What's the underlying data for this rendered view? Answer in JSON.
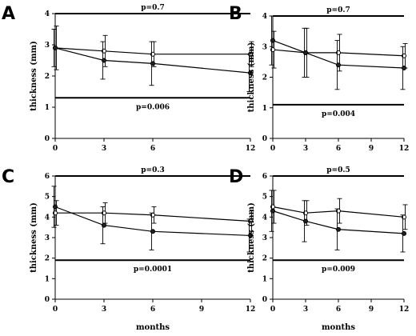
{
  "chart_data": [
    {
      "type": "line",
      "panel": "A",
      "x": [
        0,
        3,
        6,
        12
      ],
      "xticks": [
        "0",
        "3",
        "6",
        "12"
      ],
      "xlim": [
        0,
        12
      ],
      "ylim": [
        0,
        4
      ],
      "yticks": [
        "0",
        "1",
        "2",
        "3",
        "4"
      ],
      "xlabel": "",
      "ylabel": "thickness (mm)",
      "top_p": "p=0.7",
      "bottom_p": "p=0.006",
      "top_line_y": 4.0,
      "bottom_line_y": 1.3,
      "series": [
        {
          "marker": "open",
          "values": [
            2.9,
            2.8,
            2.7,
            2.7
          ],
          "err": [
            0.7,
            0.5,
            0.4,
            0.4
          ]
        },
        {
          "marker": "filled",
          "values": [
            2.9,
            2.5,
            2.4,
            2.1
          ],
          "err": [
            0.6,
            0.6,
            0.7,
            0.6
          ]
        }
      ]
    },
    {
      "type": "line",
      "panel": "B",
      "x": [
        0,
        3,
        6,
        12
      ],
      "xticks": [
        "0",
        "3",
        "6",
        "9",
        "12"
      ],
      "xlim": [
        0,
        12
      ],
      "ylim": [
        0,
        4
      ],
      "yticks": [
        "0",
        "1",
        "2",
        "3",
        "4"
      ],
      "xlabel": "",
      "ylabel": "thickness (mm)",
      "top_p": "p=0.7",
      "bottom_p": "p=0.004",
      "top_line_y": 4.0,
      "bottom_line_y": 1.1,
      "series": [
        {
          "marker": "open",
          "values": [
            2.9,
            2.8,
            2.8,
            2.7
          ],
          "err": [
            0.6,
            0.8,
            0.6,
            0.4
          ]
        },
        {
          "marker": "filled",
          "values": [
            3.2,
            2.8,
            2.4,
            2.3
          ],
          "err": [
            0.8,
            0.8,
            0.8,
            0.7
          ]
        }
      ]
    },
    {
      "type": "line",
      "panel": "C",
      "x": [
        0,
        3,
        6,
        12
      ],
      "xticks": [
        "0",
        "3",
        "6",
        "9",
        "12"
      ],
      "xlim": [
        0,
        12
      ],
      "ylim": [
        0,
        6
      ],
      "yticks": [
        "0",
        "1",
        "2",
        "3",
        "4",
        "5",
        "6"
      ],
      "xlabel": "months",
      "ylabel": "thickness (mm)",
      "top_p": "p=0.3",
      "bottom_p": "p=0.0001",
      "top_line_y": 6.0,
      "bottom_line_y": 1.9,
      "series": [
        {
          "marker": "open",
          "values": [
            4.2,
            4.2,
            4.1,
            3.8
          ],
          "err": [
            0.6,
            0.5,
            0.4,
            0.5
          ]
        },
        {
          "marker": "filled",
          "values": [
            4.5,
            3.6,
            3.3,
            3.1
          ],
          "err": [
            1.0,
            0.9,
            0.9,
            0.8
          ]
        }
      ]
    },
    {
      "type": "line",
      "panel": "D",
      "x": [
        0,
        3,
        6,
        12
      ],
      "xticks": [
        "0",
        "3",
        "6",
        "9",
        "12"
      ],
      "xlim": [
        0,
        12
      ],
      "ylim": [
        0,
        6
      ],
      "yticks": [
        "0",
        "1",
        "2",
        "3",
        "4",
        "5",
        "6"
      ],
      "xlabel": "months",
      "ylabel": "thickness (mm)",
      "top_p": "p=0.5",
      "bottom_p": "p=0.009",
      "top_line_y": 6.0,
      "bottom_line_y": 1.9,
      "series": [
        {
          "marker": "open",
          "values": [
            4.5,
            4.2,
            4.3,
            4.0
          ],
          "err": [
            0.8,
            0.6,
            0.6,
            0.6
          ]
        },
        {
          "marker": "filled",
          "values": [
            4.3,
            3.8,
            3.4,
            3.2
          ],
          "err": [
            1.0,
            1.0,
            1.0,
            0.9
          ]
        }
      ]
    }
  ]
}
